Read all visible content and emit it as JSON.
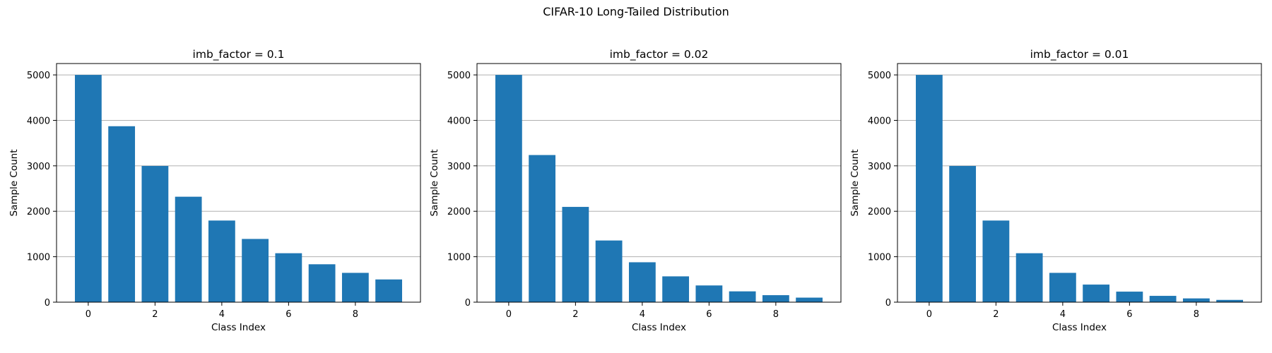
{
  "suptitle": "CIFAR-10 Long-Tailed Distribution",
  "colors": {
    "bar": "#1f77b4",
    "grid": "#b0b0b0",
    "axis": "#000000"
  },
  "chart_data": [
    {
      "type": "bar",
      "title": "imb_factor = 0.1",
      "xlabel": "Class Index",
      "ylabel": "Sample Count",
      "categories": [
        0,
        1,
        2,
        3,
        4,
        5,
        6,
        7,
        8,
        9
      ],
      "values": [
        5000,
        3871,
        2997,
        2320,
        1796,
        1391,
        1077,
        834,
        645,
        500
      ],
      "xticks": [
        0,
        2,
        4,
        6,
        8
      ],
      "yticks": [
        0,
        1000,
        2000,
        3000,
        4000,
        5000
      ],
      "xlim": [
        -0.95,
        9.95
      ],
      "ylim": [
        0,
        5250
      ],
      "grid": "y"
    },
    {
      "type": "bar",
      "title": "imb_factor = 0.02",
      "xlabel": "Class Index",
      "ylabel": "Sample Count",
      "categories": [
        0,
        1,
        2,
        3,
        4,
        5,
        6,
        7,
        8,
        9
      ],
      "values": [
        5000,
        3237,
        2096,
        1357,
        878,
        568,
        368,
        238,
        154,
        100
      ],
      "xticks": [
        0,
        2,
        4,
        6,
        8
      ],
      "yticks": [
        0,
        1000,
        2000,
        3000,
        4000,
        5000
      ],
      "xlim": [
        -0.95,
        9.95
      ],
      "ylim": [
        0,
        5250
      ],
      "grid": "y"
    },
    {
      "type": "bar",
      "title": "imb_factor = 0.01",
      "xlabel": "Class Index",
      "ylabel": "Sample Count",
      "categories": [
        0,
        1,
        2,
        3,
        4,
        5,
        6,
        7,
        8,
        9
      ],
      "values": [
        5000,
        2997,
        1796,
        1077,
        645,
        387,
        232,
        139,
        83,
        50
      ],
      "xticks": [
        0,
        2,
        4,
        6,
        8
      ],
      "yticks": [
        0,
        1000,
        2000,
        3000,
        4000,
        5000
      ],
      "xlim": [
        -0.95,
        9.95
      ],
      "ylim": [
        0,
        5250
      ],
      "grid": "y"
    }
  ]
}
